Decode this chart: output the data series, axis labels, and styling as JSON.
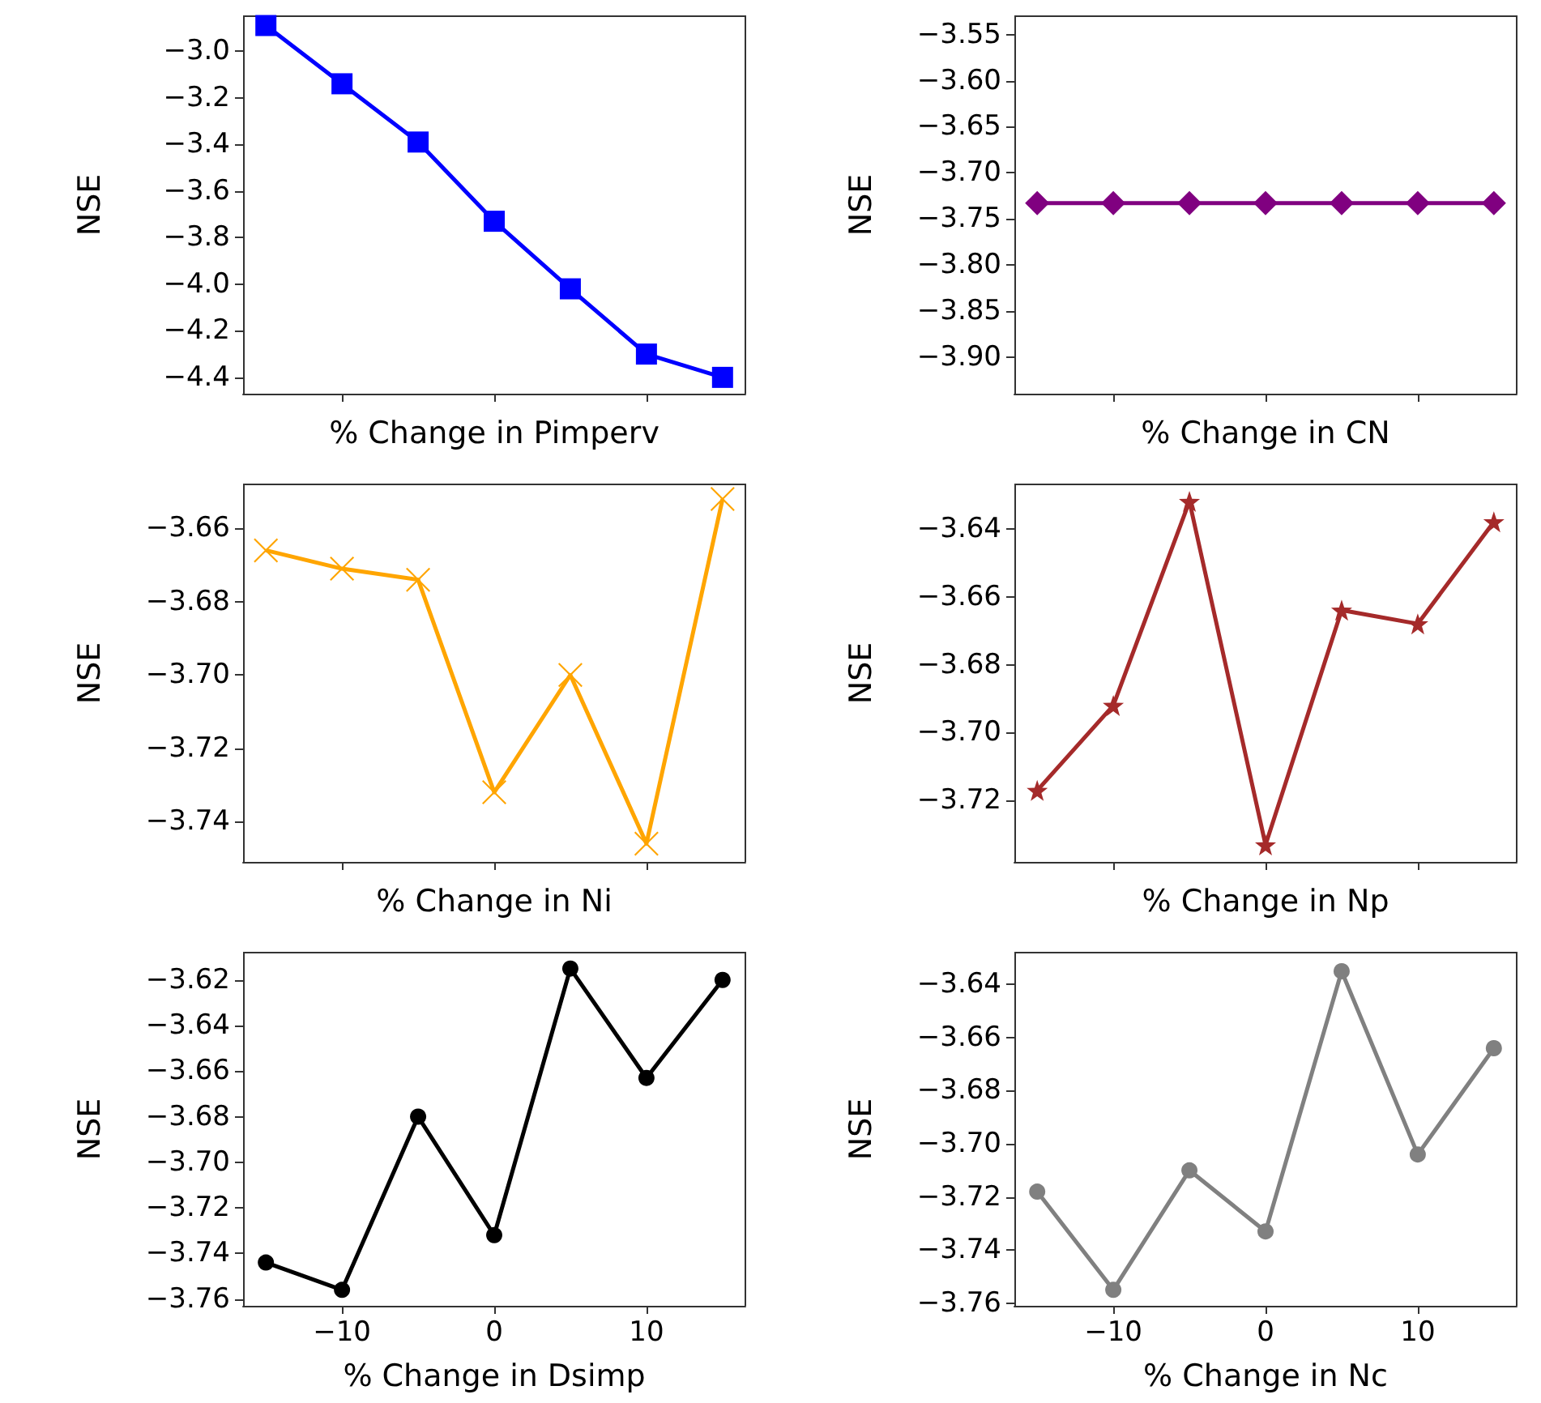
{
  "chart_data": [
    {
      "type": "line",
      "xlabel": "% Change in Pimperv",
      "ylabel": "NSE",
      "x": [
        -15,
        -10,
        -5,
        0,
        5,
        10,
        15
      ],
      "series": [
        {
          "color": "#0000ff",
          "values": [
            -2.89,
            -3.14,
            -3.39,
            -3.73,
            -4.02,
            -4.3,
            -4.4
          ]
        }
      ],
      "xlim": [
        -16.5,
        16.5
      ],
      "xticks": [
        -10,
        0,
        10
      ],
      "ylim": [
        -4.47,
        -2.85
      ],
      "yticks": [
        -4.4,
        -4.2,
        {
          "value": -4,
          "label": "−4.0"
        },
        -3.8,
        -3.6,
        -3.4,
        -3.2,
        {
          "value": -3,
          "label": "−3.0"
        }
      ],
      "tick_labels": "y",
      "marker": "square"
    },
    {
      "type": "line",
      "xlabel": "% Change in CN",
      "ylabel": "NSE",
      "x": [
        -15,
        -10,
        -5,
        0,
        5,
        10,
        15
      ],
      "series": [
        {
          "color": "#800080",
          "values": [
            -3.733,
            -3.733,
            -3.733,
            -3.733,
            -3.733,
            -3.733,
            -3.733
          ]
        }
      ],
      "xlim": [
        -16.5,
        16.5
      ],
      "xticks": [
        -10,
        0,
        10
      ],
      "ylim": [
        -3.94,
        -3.53
      ],
      "yticks": [
        {
          "value": -3.9,
          "label": "−3.90"
        },
        -3.85,
        {
          "value": -3.8,
          "label": "−3.80"
        },
        -3.75,
        {
          "value": -3.7,
          "label": "−3.70"
        },
        -3.65,
        {
          "value": -3.6,
          "label": "−3.60"
        },
        -3.55
      ],
      "tick_labels": "y",
      "marker": "diamond"
    },
    {
      "type": "line",
      "xlabel": "% Change in Ni",
      "ylabel": "NSE",
      "x": [
        -15,
        -10,
        -5,
        0,
        5,
        10,
        15
      ],
      "series": [
        {
          "color": "#ffa500",
          "values": [
            -3.666,
            -3.671,
            -3.674,
            -3.732,
            -3.7,
            -3.746,
            -3.652
          ]
        }
      ],
      "xlim": [
        -16.5,
        16.5
      ],
      "xticks": [
        -10,
        0,
        10
      ],
      "ylim": [
        -3.751,
        -3.648
      ],
      "yticks": [
        -3.74,
        -3.72,
        {
          "value": -3.7,
          "label": "−3.70"
        },
        -3.68,
        -3.66
      ],
      "tick_labels": "y",
      "marker": "cross"
    },
    {
      "type": "line",
      "xlabel": "% Change in Np",
      "ylabel": "NSE",
      "x": [
        -15,
        -10,
        -5,
        0,
        5,
        10,
        15
      ],
      "series": [
        {
          "color": "#a52a2a",
          "values": [
            -3.717,
            -3.692,
            -3.632,
            -3.733,
            -3.664,
            -3.668,
            -3.638
          ]
        }
      ],
      "xlim": [
        -16.5,
        16.5
      ],
      "xticks": [
        -10,
        0,
        10
      ],
      "ylim": [
        -3.738,
        -3.627
      ],
      "yticks": [
        -3.72,
        {
          "value": -3.7,
          "label": "−3.70"
        },
        -3.68,
        -3.66,
        -3.64
      ],
      "tick_labels": "y",
      "marker": "star"
    },
    {
      "type": "line",
      "xlabel": "% Change in Dsimp",
      "ylabel": "NSE",
      "x": [
        -15,
        -10,
        -5,
        0,
        5,
        10,
        15
      ],
      "series": [
        {
          "color": "#000000",
          "values": [
            -3.744,
            -3.756,
            -3.68,
            -3.732,
            -3.615,
            -3.663,
            -3.62
          ]
        }
      ],
      "xlim": [
        -16.5,
        16.5
      ],
      "xticks": [
        -10,
        0,
        10
      ],
      "ylim": [
        -3.763,
        -3.608
      ],
      "yticks": [
        -3.76,
        -3.74,
        -3.72,
        {
          "value": -3.7,
          "label": "−3.70"
        },
        -3.68,
        -3.66,
        -3.64,
        -3.62
      ],
      "marker": "circle"
    },
    {
      "type": "line",
      "xlabel": "% Change in Nc",
      "ylabel": "NSE",
      "x": [
        -15,
        -10,
        -5,
        0,
        5,
        10,
        15
      ],
      "series": [
        {
          "color": "#808080",
          "values": [
            -3.718,
            -3.755,
            -3.71,
            -3.733,
            -3.635,
            -3.704,
            -3.664
          ]
        }
      ],
      "xlim": [
        -16.5,
        16.5
      ],
      "xticks": [
        -10,
        0,
        10
      ],
      "ylim": [
        -3.761,
        -3.628
      ],
      "yticks": [
        -3.76,
        -3.74,
        -3.72,
        {
          "value": -3.7,
          "label": "−3.70"
        },
        -3.68,
        -3.66,
        -3.64
      ],
      "marker": "circle"
    }
  ]
}
